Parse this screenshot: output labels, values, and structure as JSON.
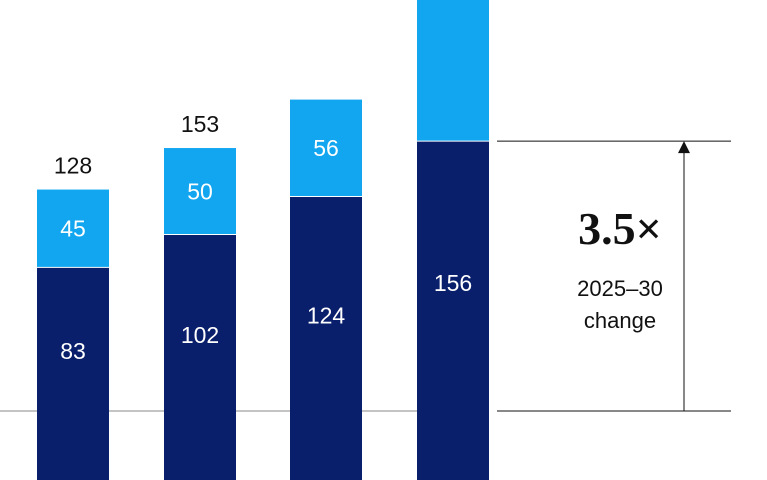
{
  "chart_data": {
    "type": "bar",
    "stacked": true,
    "categories": [
      "",
      "",
      "",
      ""
    ],
    "series": [
      {
        "values": [
          83,
          102,
          124,
          156
        ],
        "color": "#0a1f6b"
      },
      {
        "values": [
          45,
          50,
          56,
          null
        ],
        "color": "#11a6ef"
      }
    ],
    "totals": [
      128,
      153,
      null,
      null
    ],
    "annotation": {
      "multiplier": "3.5×",
      "line1": "2025–30",
      "line2": "change"
    },
    "colors": {
      "baseline": "#888888",
      "annotation_line": "#111111"
    }
  }
}
